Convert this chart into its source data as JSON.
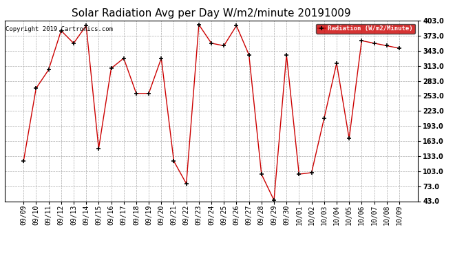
{
  "title": "Solar Radiation Avg per Day W/m2/minute 20191009",
  "copyright": "Copyright 2019 Cartronics.com",
  "legend_label": "Radiation (W/m2/Minute)",
  "dates": [
    "09/09",
    "09/10",
    "09/11",
    "09/12",
    "09/13",
    "09/14",
    "09/15",
    "09/16",
    "09/17",
    "09/18",
    "09/19",
    "09/20",
    "09/21",
    "09/22",
    "09/23",
    "09/24",
    "09/25",
    "09/26",
    "09/27",
    "09/28",
    "09/29",
    "09/30",
    "10/01",
    "10/02",
    "10/03",
    "10/04",
    "10/05",
    "10/06",
    "10/07",
    "10/08",
    "10/09"
  ],
  "values": [
    123,
    268,
    305,
    383,
    358,
    393,
    148,
    308,
    328,
    258,
    258,
    328,
    123,
    78,
    395,
    358,
    353,
    393,
    335,
    97,
    45,
    335,
    97,
    100,
    208,
    318,
    168,
    363,
    358,
    353,
    348
  ],
  "line_color": "#cc0000",
  "marker_color": "#000000",
  "background_color": "#ffffff",
  "plot_bg_color": "#ffffff",
  "grid_color": "#aaaaaa",
  "ylim": [
    43.0,
    403.0
  ],
  "yticks": [
    43.0,
    73.0,
    103.0,
    133.0,
    163.0,
    193.0,
    223.0,
    253.0,
    283.0,
    313.0,
    343.0,
    373.0,
    403.0
  ],
  "legend_bg": "#cc0000",
  "legend_text_color": "#ffffff",
  "title_fontsize": 11,
  "tick_fontsize": 7,
  "copyright_fontsize": 6.5
}
